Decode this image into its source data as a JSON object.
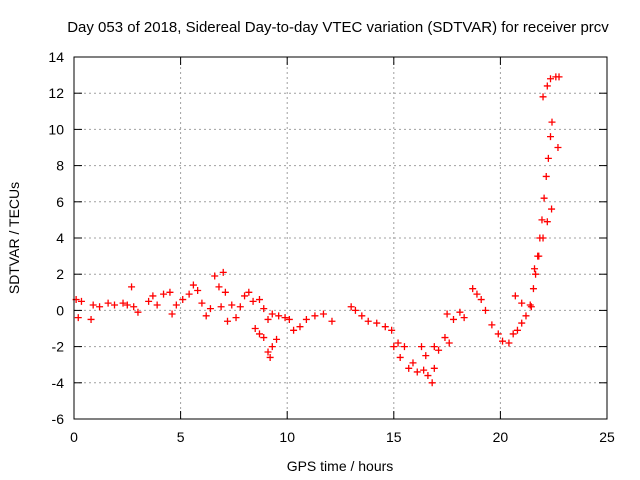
{
  "chart_data": {
    "type": "scatter",
    "title": "Day 053 of 2018, Sidereal Day-to-day VTEC variation (SDTVAR) for receiver prcv",
    "xlabel": "GPS time / hours",
    "ylabel": "SDTVAR / TECUs",
    "xlim": [
      0,
      25
    ],
    "ylim": [
      -6,
      14
    ],
    "xticks": [
      "0",
      "5",
      "10",
      "15",
      "20",
      "25"
    ],
    "yticks": [
      "-6",
      "-4",
      "-2",
      "0",
      "2",
      "4",
      "6",
      "8",
      "10",
      "12",
      "14"
    ],
    "grid": true,
    "marker": "plus",
    "series": [
      {
        "name": "SDTVAR",
        "color": "#ff0000",
        "anchors": [
          [
            0.1,
            0.6
          ],
          [
            0.2,
            -0.4
          ],
          [
            0.35,
            0.5
          ],
          [
            0.8,
            -0.5
          ],
          [
            0.9,
            0.3
          ],
          [
            1.2,
            0.2
          ],
          [
            1.6,
            0.4
          ],
          [
            1.9,
            0.3
          ],
          [
            2.3,
            0.4
          ],
          [
            2.5,
            0.3
          ],
          [
            2.7,
            1.3
          ],
          [
            2.8,
            0.2
          ],
          [
            3.0,
            -0.1
          ],
          [
            3.5,
            0.5
          ],
          [
            3.7,
            0.8
          ],
          [
            3.9,
            0.3
          ],
          [
            4.2,
            0.9
          ],
          [
            4.5,
            1.0
          ],
          [
            4.6,
            -0.2
          ],
          [
            4.8,
            0.3
          ],
          [
            5.1,
            0.6
          ],
          [
            5.4,
            0.9
          ],
          [
            5.6,
            1.4
          ],
          [
            5.8,
            1.1
          ],
          [
            6.0,
            0.4
          ],
          [
            6.2,
            -0.3
          ],
          [
            6.4,
            0.1
          ],
          [
            6.6,
            1.9
          ],
          [
            6.8,
            1.3
          ],
          [
            6.9,
            0.2
          ],
          [
            7.0,
            2.1
          ],
          [
            7.1,
            1.0
          ],
          [
            7.2,
            -0.6
          ],
          [
            7.4,
            0.3
          ],
          [
            7.6,
            -0.4
          ],
          [
            7.8,
            0.2
          ],
          [
            8.0,
            0.8
          ],
          [
            8.2,
            1.0
          ],
          [
            8.4,
            0.5
          ],
          [
            8.7,
            0.6
          ],
          [
            8.9,
            0.1
          ],
          [
            9.1,
            -0.5
          ],
          [
            9.3,
            -0.2
          ],
          [
            9.6,
            -0.3
          ],
          [
            9.9,
            -0.4
          ],
          [
            10.1,
            -0.5
          ],
          [
            10.3,
            -1.1
          ],
          [
            10.6,
            -0.9
          ],
          [
            10.9,
            -0.5
          ],
          [
            11.3,
            -0.3
          ],
          [
            11.7,
            -0.2
          ],
          [
            12.1,
            -0.6
          ],
          [
            8.5,
            -1.0
          ],
          [
            8.7,
            -1.3
          ],
          [
            8.9,
            -1.5
          ],
          [
            9.1,
            -2.3
          ],
          [
            9.2,
            -2.6
          ],
          [
            9.3,
            -2.0
          ],
          [
            9.5,
            -1.6
          ],
          [
            13.0,
            0.2
          ],
          [
            13.2,
            0.0
          ],
          [
            13.5,
            -0.3
          ],
          [
            13.8,
            -0.6
          ],
          [
            14.2,
            -0.7
          ],
          [
            14.6,
            -0.9
          ],
          [
            14.9,
            -1.1
          ],
          [
            15.0,
            -2.0
          ],
          [
            15.2,
            -1.8
          ],
          [
            15.3,
            -2.6
          ],
          [
            15.5,
            -2.0
          ],
          [
            15.7,
            -3.2
          ],
          [
            15.9,
            -2.9
          ],
          [
            16.1,
            -3.4
          ],
          [
            16.4,
            -3.3
          ],
          [
            16.6,
            -3.6
          ],
          [
            16.8,
            -4.0
          ],
          [
            16.9,
            -3.2
          ],
          [
            16.3,
            -2.0
          ],
          [
            16.5,
            -2.5
          ],
          [
            16.9,
            -2.0
          ],
          [
            17.1,
            -2.2
          ],
          [
            17.4,
            -1.5
          ],
          [
            17.6,
            -1.8
          ],
          [
            17.5,
            -0.2
          ],
          [
            17.8,
            -0.5
          ],
          [
            18.1,
            -0.1
          ],
          [
            18.3,
            -0.4
          ],
          [
            18.7,
            1.2
          ],
          [
            18.9,
            0.9
          ],
          [
            19.1,
            0.6
          ],
          [
            19.3,
            0.0
          ],
          [
            19.6,
            -0.8
          ],
          [
            19.9,
            -1.3
          ],
          [
            20.1,
            -1.7
          ],
          [
            20.4,
            -1.8
          ],
          [
            20.6,
            -1.3
          ],
          [
            20.8,
            -1.1
          ],
          [
            21.0,
            -0.7
          ],
          [
            21.2,
            -0.3
          ],
          [
            21.4,
            0.3
          ],
          [
            20.7,
            0.8
          ],
          [
            21.0,
            0.4
          ],
          [
            21.45,
            0.2
          ],
          [
            21.55,
            1.2
          ],
          [
            21.65,
            2.0
          ],
          [
            21.75,
            3.0
          ],
          [
            21.85,
            4.0
          ],
          [
            21.95,
            5.0
          ],
          [
            22.05,
            6.2
          ],
          [
            22.15,
            7.4
          ],
          [
            22.25,
            8.4
          ],
          [
            22.35,
            9.6
          ],
          [
            22.42,
            10.4
          ],
          [
            21.6,
            2.3
          ],
          [
            21.8,
            3.0
          ],
          [
            22.0,
            4.0
          ],
          [
            22.2,
            4.9
          ],
          [
            22.4,
            5.6
          ],
          [
            22.0,
            11.8
          ],
          [
            22.2,
            12.4
          ],
          [
            22.35,
            12.8
          ],
          [
            22.6,
            12.9
          ],
          [
            22.75,
            12.9
          ],
          [
            22.7,
            9.0
          ]
        ]
      }
    ]
  }
}
